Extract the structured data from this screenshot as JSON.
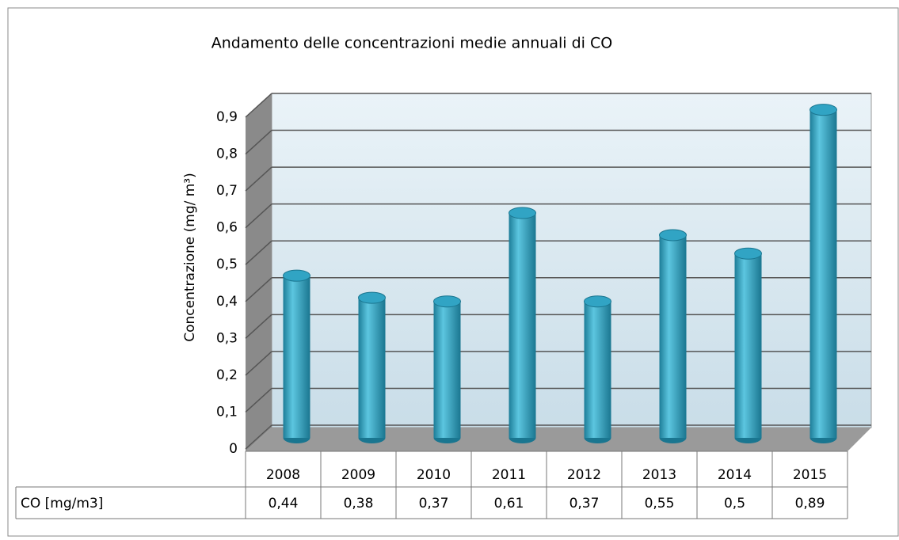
{
  "chart_data": {
    "type": "bar3d",
    "title": "Andamento delle concentrazioni medie annuali di CO",
    "y_label": "Concentrazione (mg/ m³)",
    "categories": [
      "2008",
      "2009",
      "2010",
      "2011",
      "2012",
      "2013",
      "2014",
      "2015"
    ],
    "series": [
      {
        "name": "CO [mg/m3]",
        "color": "#31a4c4",
        "values": [
          0.44,
          0.38,
          0.37,
          0.61,
          0.37,
          0.55,
          0.5,
          0.89
        ],
        "value_labels": [
          "0,44",
          "0,38",
          "0,37",
          "0,61",
          "0,37",
          "0,55",
          "0,5",
          "0,89"
        ]
      }
    ],
    "ylim": [
      0,
      0.9
    ],
    "yticks": [
      0,
      {
        "value": 0.1,
        "label": "0,1"
      },
      {
        "value": 0.2,
        "label": "0,2"
      },
      {
        "value": 0.3,
        "label": "0,3"
      },
      {
        "value": 0.4,
        "label": "0,4"
      },
      {
        "value": 0.5,
        "label": "0,5"
      },
      {
        "value": 0.6,
        "label": "0,6"
      },
      {
        "value": 0.7,
        "label": "0,7"
      },
      {
        "value": 0.8,
        "label": "0,8"
      },
      {
        "value": 0.9,
        "label": "0,9"
      }
    ],
    "grid": true
  }
}
